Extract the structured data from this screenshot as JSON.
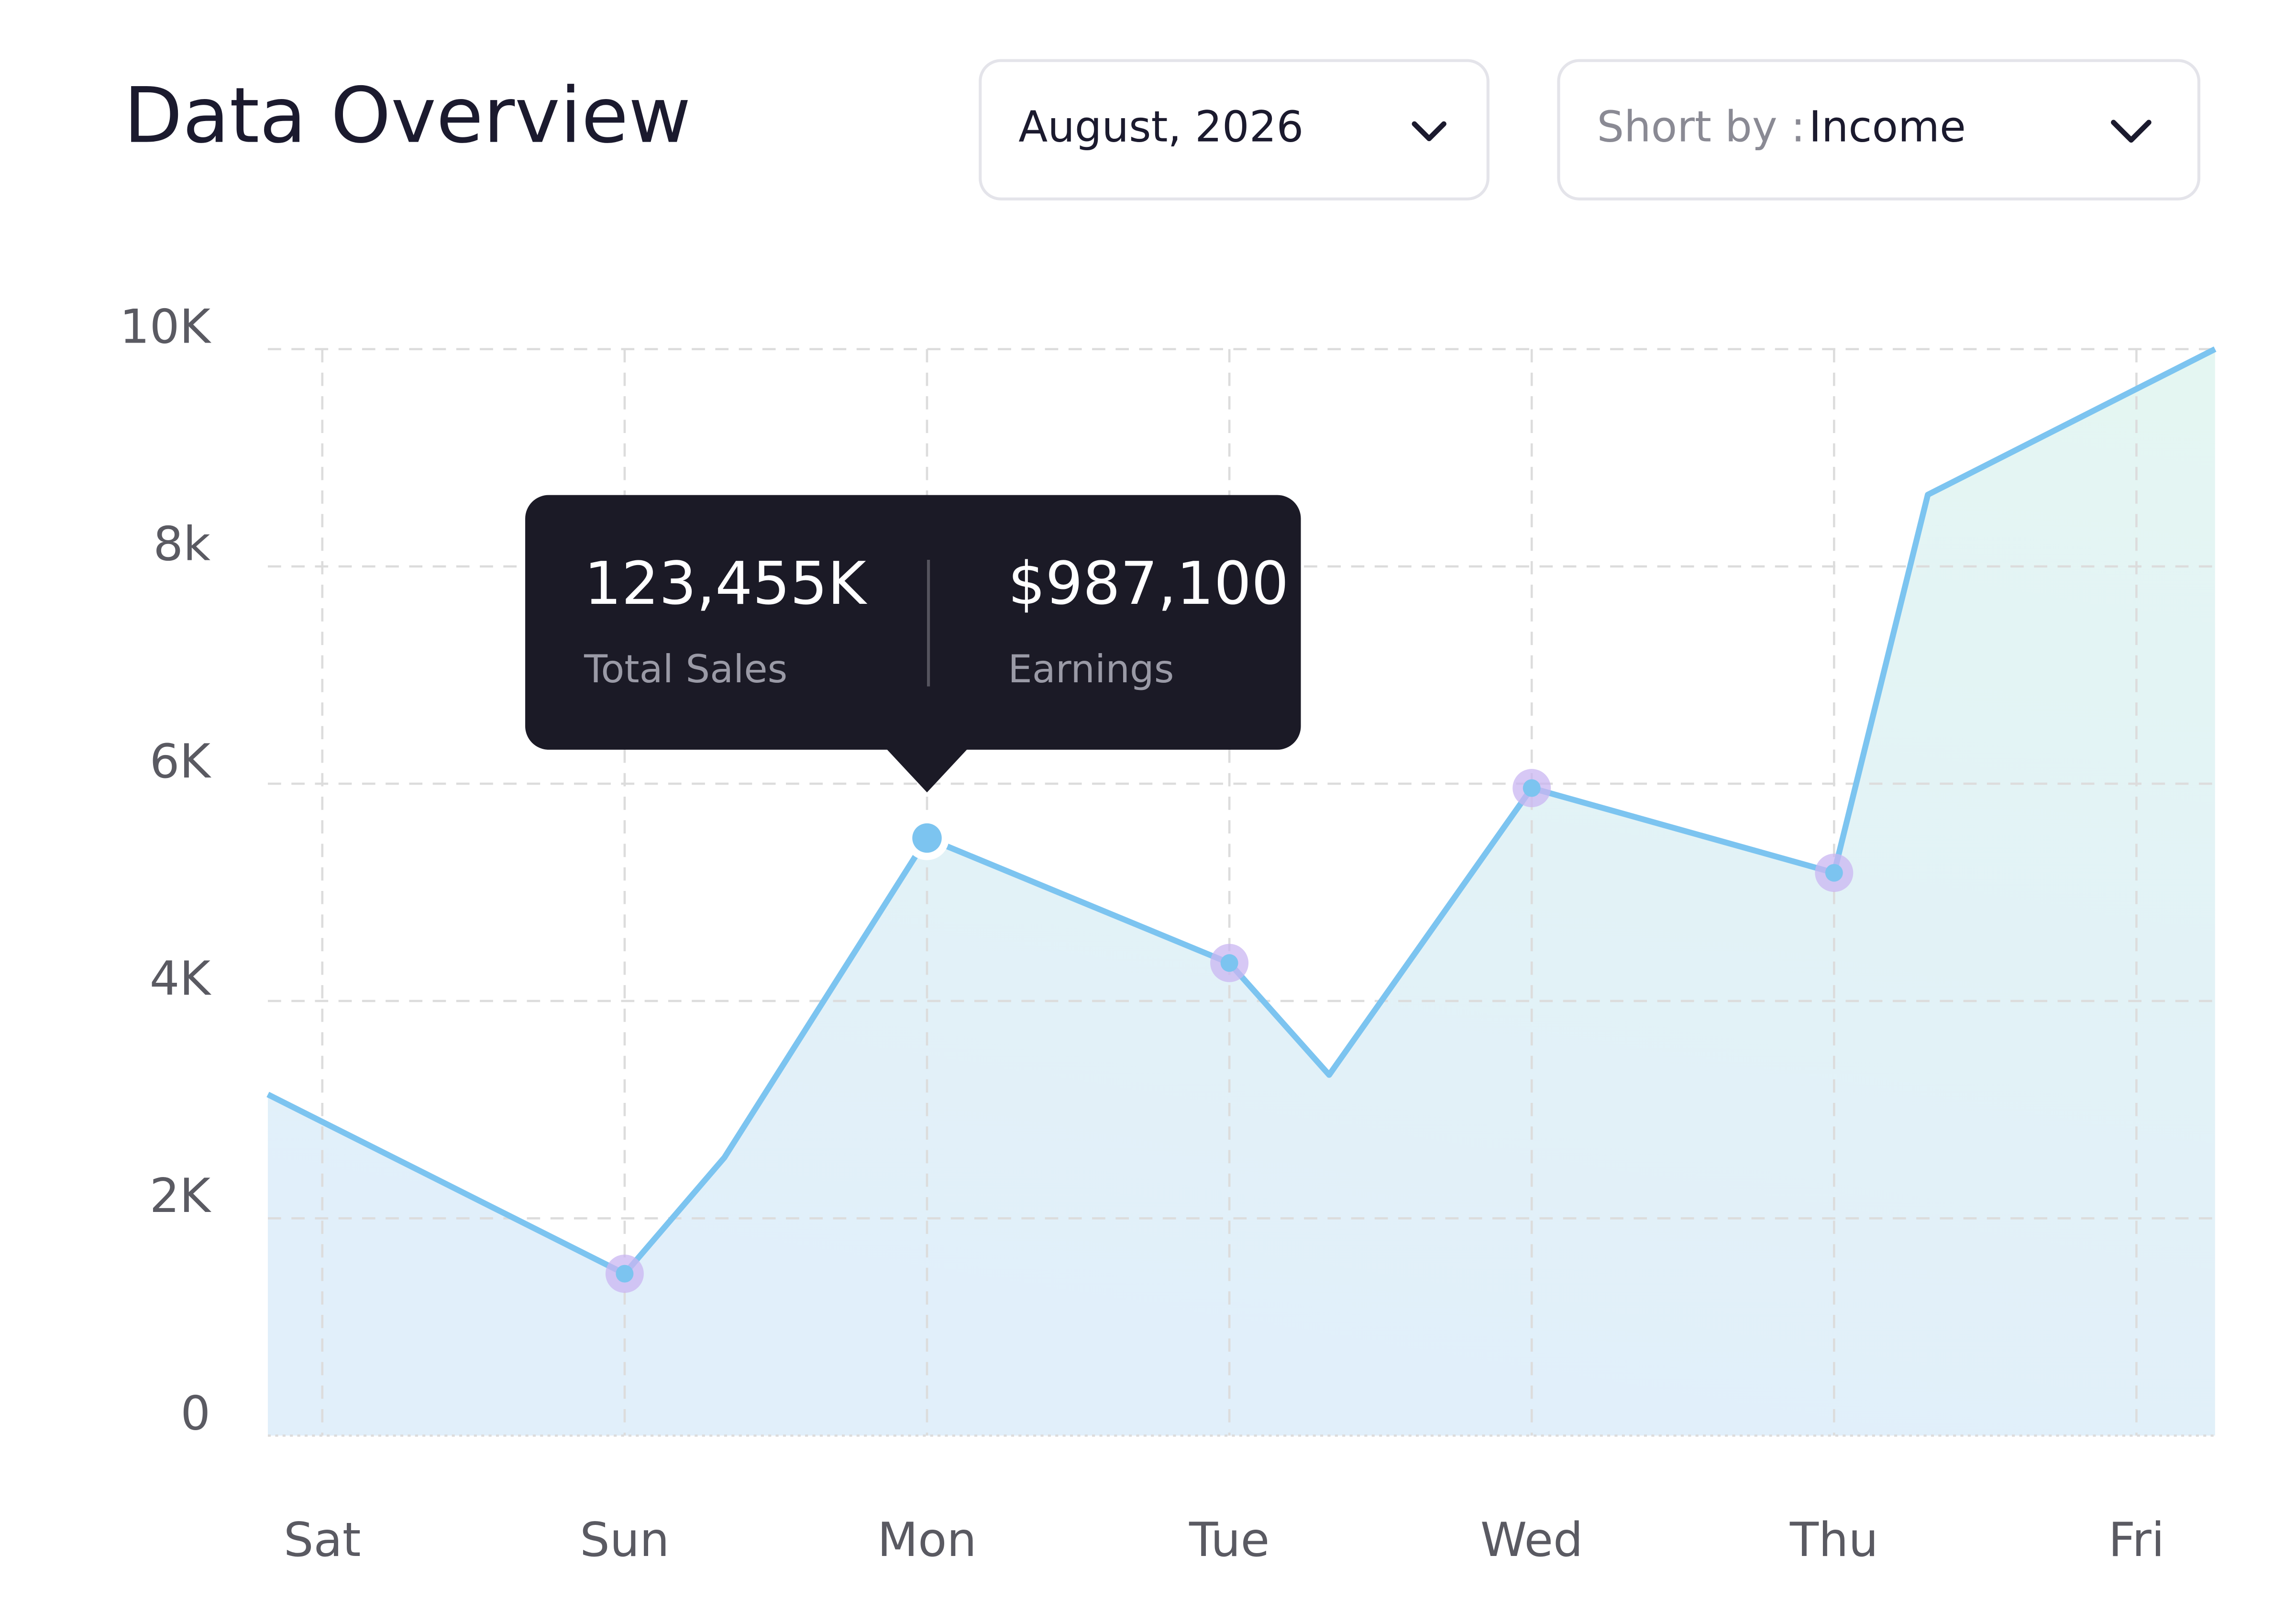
{
  "header": {
    "title": "Data Overview",
    "date_select": "August, 2026",
    "sort_label": "Short by :",
    "sort_value": "Income"
  },
  "chart_data": {
    "type": "area",
    "x": [
      -0.18,
      1,
      1.33,
      2,
      3,
      3.33,
      4,
      5,
      5.31,
      6.26
    ],
    "values": [
      3140,
      1490,
      2560,
      5500,
      4350,
      3320,
      5960,
      5180,
      8660,
      10000
    ],
    "color": "#7cc4f0",
    "xlim": [
      -0.18,
      6.26
    ],
    "xticks": [
      {
        "value": 0,
        "label": "Sat"
      },
      {
        "value": 1,
        "label": "Sun"
      },
      {
        "value": 2,
        "label": "Mon"
      },
      {
        "value": 3,
        "label": "Tue"
      },
      {
        "value": 4,
        "label": "Wed"
      },
      {
        "value": 5,
        "label": "Thu"
      },
      {
        "value": 6,
        "label": "Fri"
      }
    ],
    "ylim": [
      0,
      10000
    ],
    "yticks": [
      {
        "value": 0,
        "label": "0"
      },
      {
        "value": 2000,
        "label": "2K"
      },
      {
        "value": 4000,
        "label": "4K"
      },
      {
        "value": 6000,
        "label": "6K"
      },
      {
        "value": 8000,
        "label": "8k"
      },
      {
        "value": 10000,
        "label": "10K"
      }
    ],
    "grid": true,
    "tooltip": {
      "x": 2,
      "items": [
        {
          "value": "123,455K",
          "label": "Total Sales"
        },
        {
          "value": "$987,100",
          "label": "Earnings"
        }
      ]
    }
  }
}
